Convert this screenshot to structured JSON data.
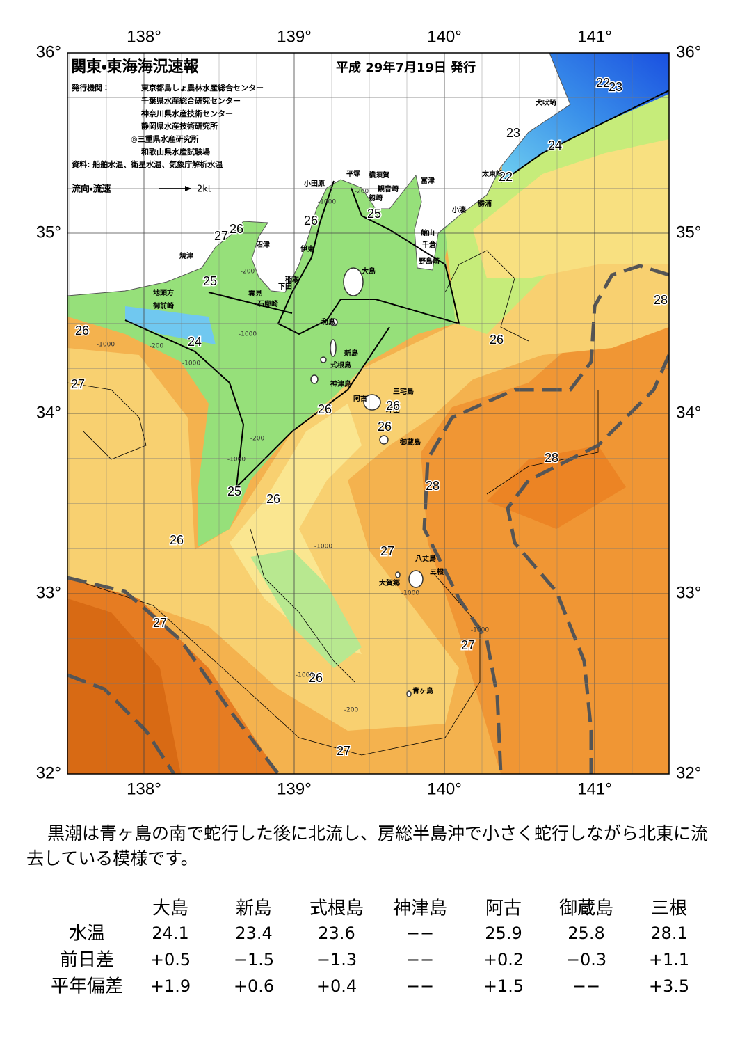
{
  "header": {
    "title": "関東・東海海況速報",
    "date": "平成 29年7月19日 発行",
    "publisher_label": "発行機関：",
    "publishers": [
      "東京都島しょ農林水産総合センター",
      "千葉県水産総合研究センター",
      "神奈川県水産技術センター",
      "静岡県水産技術研究所",
      "◎三重県水産研究所",
      "和歌山県水産試験場"
    ],
    "source": "資料: 船舶水温、衛星水温、気象庁解析水温",
    "legend_label": "流向・流速",
    "legend_scale": "2kt"
  },
  "map": {
    "lon_labels": [
      "138°",
      "139°",
      "140°",
      "141°"
    ],
    "lat_labels": [
      "36°",
      "35°",
      "34°",
      "33°",
      "32°"
    ],
    "places": [
      "犬吠埼",
      "太東崎",
      "勝浦",
      "小湊",
      "富津",
      "館山",
      "千倉",
      "野島崎",
      "横須賀",
      "観音崎",
      "剱崎",
      "平塚",
      "小田原",
      "沼津",
      "伊東",
      "焼津",
      "大島",
      "稲取",
      "下田",
      "雲見",
      "石廊崎",
      "地頭方",
      "御前崎",
      "利島",
      "新島",
      "式根島",
      "神津島",
      "三宅島",
      "阿古",
      "坪田",
      "御蔵島",
      "八丈島",
      "三根",
      "大賀郷",
      "青ヶ島"
    ],
    "contour_labels": [
      "22",
      "23",
      "23",
      "24",
      "22",
      "26",
      "27",
      "26",
      "25",
      "25",
      "24",
      "26",
      "27",
      "26",
      "26",
      "26",
      "28",
      "26",
      "28",
      "28",
      "25",
      "26",
      "26",
      "27",
      "27",
      "27",
      "26",
      "27"
    ],
    "depth_labels": [
      "-200",
      "-1000",
      "-200",
      "-1000",
      "-1000",
      "-200",
      "-1000",
      "-200",
      "-1000",
      "-1000",
      "-1000",
      "-200",
      "-1000",
      "-1000"
    ]
  },
  "description": "黒潮は青ヶ島の南で蛇行した後に北流し、房総半島沖で小さく蛇行しながら北東に流去している模様です。",
  "table": {
    "columns": [
      "大島",
      "新島",
      "式根島",
      "神津島",
      "阿古",
      "御蔵島",
      "三根"
    ],
    "rows": [
      {
        "label": "水温",
        "cells": [
          "24.1",
          "23.4",
          "23.6",
          "−−",
          "25.9",
          "25.8",
          "28.1"
        ]
      },
      {
        "label": "前日差",
        "cells": [
          "+0.5",
          "−1.5",
          "−1.3",
          "−−",
          "+0.2",
          "−0.3",
          "+1.1"
        ]
      },
      {
        "label": "平年偏差",
        "cells": [
          "+1.9",
          "+0.6",
          "+0.4",
          "−−",
          "+1.5",
          "−−",
          "+3.5"
        ]
      }
    ]
  }
}
